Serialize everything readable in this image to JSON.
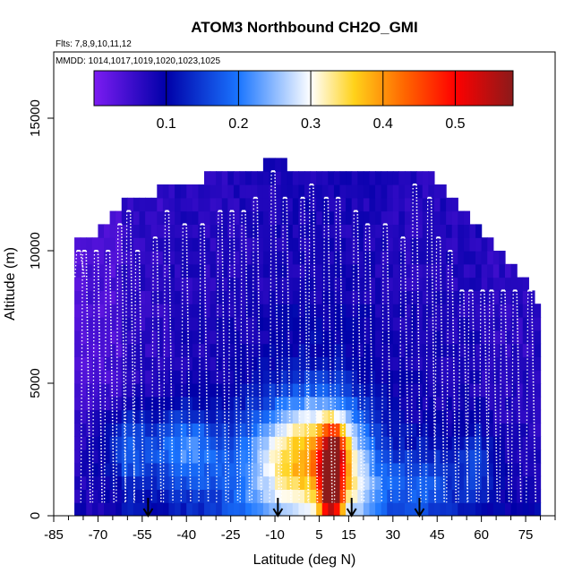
{
  "chart_data": {
    "type": "heatmap",
    "title": "ATOM3 Northbound CH2O_GMI",
    "flights_text": "Flts: 7,8,9,10,11,12",
    "dates_text": "MMDD: 1014,1017,1019,1020,1023,1025",
    "xlabel": "Latitude (deg N)",
    "ylabel": "Altitude (m)",
    "xlim": [
      -85,
      85
    ],
    "ylim": [
      0,
      17500
    ],
    "x_ticks": [
      -85,
      -70,
      -55,
      -40,
      -25,
      -10,
      5,
      15,
      30,
      45,
      60,
      75
    ],
    "x_tick_labels": [
      "-85",
      "-70",
      "-55",
      "-40",
      "-25",
      "-10",
      "5",
      "15",
      "30",
      "45",
      "60",
      "75"
    ],
    "y_ticks": [
      0,
      5000,
      10000,
      15000
    ],
    "y_tick_labels": [
      "0",
      "5000",
      "10000",
      "15000"
    ],
    "colorbar": {
      "range": [
        0,
        0.58
      ],
      "ticks": [
        0.1,
        0.2,
        0.3,
        0.4,
        0.5
      ],
      "tick_labels": [
        "0.1",
        "0.2",
        "0.3",
        "0.4",
        "0.5"
      ],
      "colors": [
        "#7c1cf2",
        "#0000a8",
        "#1a75ff",
        "#ffffff",
        "#ffd21a",
        "#ff6600",
        "#ff0000",
        "#8b1a1a"
      ],
      "stops": [
        0,
        0.1,
        0.2,
        0.3,
        0.36,
        0.43,
        0.5,
        0.58
      ]
    },
    "grid": {
      "lat_start": -78,
      "lat_end": 79,
      "lat_step": 2,
      "alt_step": 500
    },
    "altitude_ceiling": [
      [
        -78,
        10500
      ],
      [
        -75,
        10500
      ],
      [
        -70,
        10500
      ],
      [
        -66,
        11000
      ],
      [
        -62,
        11500
      ],
      [
        -58,
        12000
      ],
      [
        -54,
        12000
      ],
      [
        -50,
        12000
      ],
      [
        -46,
        12500
      ],
      [
        -42,
        12500
      ],
      [
        -38,
        12500
      ],
      [
        -34,
        12500
      ],
      [
        -30,
        13000
      ],
      [
        -26,
        13000
      ],
      [
        -14,
        13000
      ],
      [
        -10,
        13500
      ],
      [
        -6,
        13000
      ],
      [
        4,
        13000
      ],
      [
        32,
        13000
      ],
      [
        40,
        13000
      ],
      [
        44,
        12500
      ],
      [
        48,
        12000
      ],
      [
        52,
        11500
      ],
      [
        56,
        11000
      ],
      [
        60,
        10500
      ],
      [
        64,
        10000
      ],
      [
        68,
        9500
      ],
      [
        72,
        9000
      ],
      [
        76,
        8500
      ],
      [
        79,
        8000
      ]
    ],
    "anomalies": [
      {
        "lat": 9,
        "alt": 1200,
        "dlat": 4,
        "dalt": 1700,
        "amp": 0.37
      },
      {
        "lat": 11,
        "alt": 2600,
        "dlat": 4,
        "dalt": 900,
        "amp": 0.11
      },
      {
        "lat": 6,
        "alt": 2600,
        "dlat": 16,
        "dalt": 2000,
        "amp": 0.2
      },
      {
        "lat": 18,
        "alt": 800,
        "dlat": 11,
        "dalt": 1400,
        "amp": 0.1
      },
      {
        "lat": -40,
        "alt": 2500,
        "dlat": 10,
        "dalt": 1500,
        "amp": 0.12
      },
      {
        "lat": -8,
        "alt": 1500,
        "dlat": 20,
        "dalt": 2500,
        "amp": 0.15
      },
      {
        "lat": -60,
        "alt": 2500,
        "dlat": 10,
        "dalt": 1500,
        "amp": 0.09
      },
      {
        "lat": 58,
        "alt": 2000,
        "dlat": 8,
        "dalt": 1500,
        "amp": 0.06
      },
      {
        "lat": 40,
        "alt": 1200,
        "dlat": 10,
        "dalt": 1500,
        "amp": 0.08
      }
    ],
    "flight_profiles": [
      {
        "lat": -76,
        "top": 10000,
        "bottom": 9000
      },
      {
        "lat": -74,
        "top": 10000,
        "bottom": 500
      },
      {
        "lat": -70,
        "top": 10000,
        "bottom": 500
      },
      {
        "lat": -66,
        "top": 10000,
        "bottom": 500
      },
      {
        "lat": -62,
        "top": 11000,
        "bottom": 500
      },
      {
        "lat": -59,
        "top": 11500,
        "bottom": 500
      },
      {
        "lat": -56,
        "top": 10000,
        "bottom": 500
      },
      {
        "lat": -50,
        "top": 10500,
        "bottom": 500
      },
      {
        "lat": -46,
        "top": 11500,
        "bottom": 500
      },
      {
        "lat": -40,
        "top": 11000,
        "bottom": 500
      },
      {
        "lat": -34,
        "top": 11000,
        "bottom": 500
      },
      {
        "lat": -28,
        "top": 11500,
        "bottom": 500
      },
      {
        "lat": -24,
        "top": 11500,
        "bottom": 500
      },
      {
        "lat": -20,
        "top": 11500,
        "bottom": 500
      },
      {
        "lat": -16,
        "top": 12000,
        "bottom": 500
      },
      {
        "lat": -10,
        "top": 13000,
        "bottom": 500
      },
      {
        "lat": -6,
        "top": 12000,
        "bottom": 500
      },
      {
        "lat": 0,
        "top": 12000,
        "bottom": 500
      },
      {
        "lat": 3,
        "top": 12500,
        "bottom": 500
      },
      {
        "lat": 8,
        "top": 12000,
        "bottom": 500
      },
      {
        "lat": 12,
        "top": 12000,
        "bottom": 500
      },
      {
        "lat": 18,
        "top": 11500,
        "bottom": 500
      },
      {
        "lat": 22,
        "top": 11000,
        "bottom": 500
      },
      {
        "lat": 28,
        "top": 11000,
        "bottom": 500
      },
      {
        "lat": 34,
        "top": 10500,
        "bottom": 500
      },
      {
        "lat": 38,
        "top": 12500,
        "bottom": 500
      },
      {
        "lat": 43,
        "top": 12000,
        "bottom": 500
      },
      {
        "lat": 46,
        "top": 10500,
        "bottom": 500
      },
      {
        "lat": 50,
        "top": 10000,
        "bottom": 500
      },
      {
        "lat": 54,
        "top": 8500,
        "bottom": 500
      },
      {
        "lat": 57,
        "top": 8500,
        "bottom": 500
      },
      {
        "lat": 61,
        "top": 8500,
        "bottom": 500
      },
      {
        "lat": 64,
        "top": 8500,
        "bottom": 500
      },
      {
        "lat": 68,
        "top": 8500,
        "bottom": 500
      },
      {
        "lat": 72,
        "top": 8500,
        "bottom": 500
      },
      {
        "lat": 77,
        "top": 8500,
        "bottom": 500
      }
    ],
    "arrows": [
      -53,
      -9,
      16,
      39
    ]
  }
}
